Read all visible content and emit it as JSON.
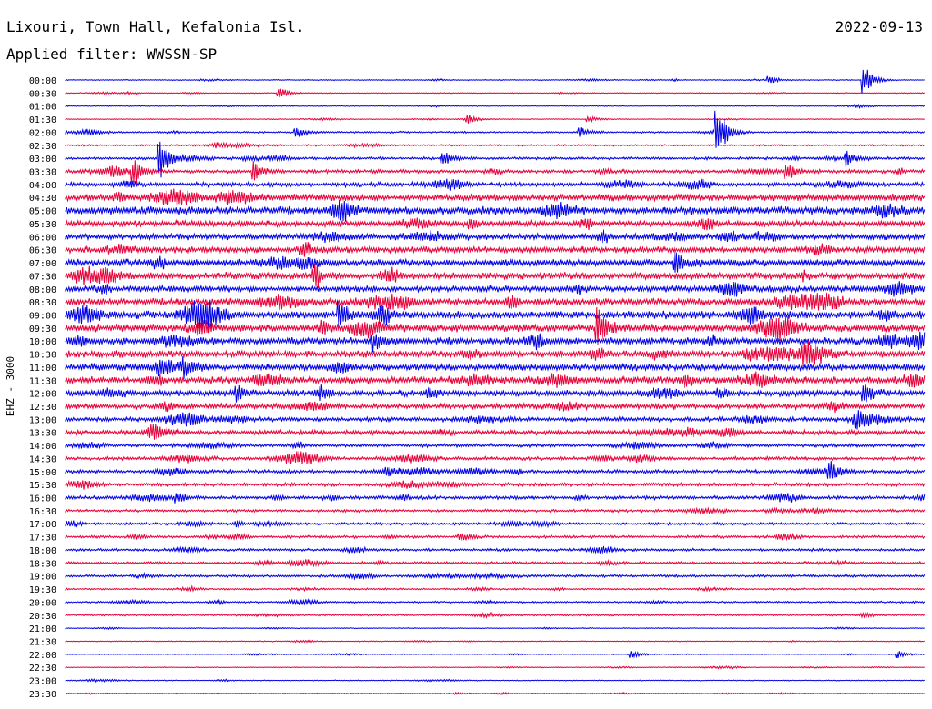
{
  "header": {
    "station": "Lixouri, Town Hall, Kefalonia Isl.",
    "filter": "Applied filter: WWSSN-SP",
    "date": "2022-09-13"
  },
  "chart_data": {
    "type": "line",
    "title": "Lixouri, Town Hall, Kefalonia Isl.",
    "subtitle": "Applied filter: WWSSN-SP",
    "date": "2022-09-13",
    "ylabel": "EHZ - 3000",
    "colors": {
      "even": "#0000e6",
      "odd": "#e6003a"
    },
    "rows": [
      "00:00",
      "00:30",
      "01:00",
      "01:30",
      "02:00",
      "02:30",
      "03:00",
      "03:30",
      "04:00",
      "04:30",
      "05:00",
      "05:30",
      "06:00",
      "06:30",
      "07:00",
      "07:30",
      "08:00",
      "08:30",
      "09:00",
      "09:30",
      "10:00",
      "10:30",
      "11:00",
      "11:30",
      "12:00",
      "12:30",
      "13:00",
      "13:30",
      "14:00",
      "14:30",
      "15:00",
      "15:30",
      "16:00",
      "16:30",
      "17:00",
      "17:30",
      "18:00",
      "18:30",
      "19:00",
      "19:30",
      "20:00",
      "20:30",
      "21:00",
      "21:30",
      "22:00",
      "22:30",
      "23:00",
      "23:30"
    ],
    "noise_level": [
      1,
      1,
      1,
      1,
      2,
      2,
      3,
      4,
      5,
      8,
      9,
      7,
      7,
      7,
      8,
      8,
      7,
      8,
      9,
      9,
      8,
      8,
      8,
      8,
      7,
      6,
      5,
      5,
      4,
      4,
      4,
      4,
      4,
      3,
      3,
      3,
      3,
      3,
      3,
      2,
      2,
      2,
      1,
      1,
      1,
      1,
      1,
      1
    ],
    "events": [
      {
        "row": "00:00",
        "x": 0.82,
        "amp": 5
      },
      {
        "row": "00:00",
        "x": 0.93,
        "amp": 18
      },
      {
        "row": "00:30",
        "x": 0.25,
        "amp": 6
      },
      {
        "row": "01:30",
        "x": 0.47,
        "amp": 4
      },
      {
        "row": "01:30",
        "x": 0.61,
        "amp": 3
      },
      {
        "row": "02:00",
        "x": 0.27,
        "amp": 6
      },
      {
        "row": "02:00",
        "x": 0.6,
        "amp": 5
      },
      {
        "row": "02:00",
        "x": 0.76,
        "amp": 28
      },
      {
        "row": "03:00",
        "x": 0.11,
        "amp": 24
      },
      {
        "row": "03:00",
        "x": 0.44,
        "amp": 8
      },
      {
        "row": "03:00",
        "x": 0.91,
        "amp": 10
      },
      {
        "row": "03:30",
        "x": 0.08,
        "amp": 14
      },
      {
        "row": "03:30",
        "x": 0.22,
        "amp": 12
      },
      {
        "row": "03:30",
        "x": 0.84,
        "amp": 10
      },
      {
        "row": "07:00",
        "x": 0.71,
        "amp": 14
      },
      {
        "row": "09:00",
        "x": 0.32,
        "amp": 12
      },
      {
        "row": "09:30",
        "x": 0.62,
        "amp": 22
      },
      {
        "row": "10:00",
        "x": 0.36,
        "amp": 10
      },
      {
        "row": "10:30",
        "x": 0.86,
        "amp": 10
      },
      {
        "row": "11:00",
        "x": 0.14,
        "amp": 8
      },
      {
        "row": "12:00",
        "x": 0.2,
        "amp": 8
      },
      {
        "row": "12:00",
        "x": 0.93,
        "amp": 10
      },
      {
        "row": "13:00",
        "x": 0.92,
        "amp": 8
      },
      {
        "row": "15:00",
        "x": 0.89,
        "amp": 10
      },
      {
        "row": "16:00",
        "x": 0.13,
        "amp": 6
      },
      {
        "row": "17:30",
        "x": 0.46,
        "amp": 6
      },
      {
        "row": "22:00",
        "x": 0.66,
        "amp": 4
      },
      {
        "row": "22:00",
        "x": 0.97,
        "amp": 4
      }
    ],
    "grid": false
  }
}
